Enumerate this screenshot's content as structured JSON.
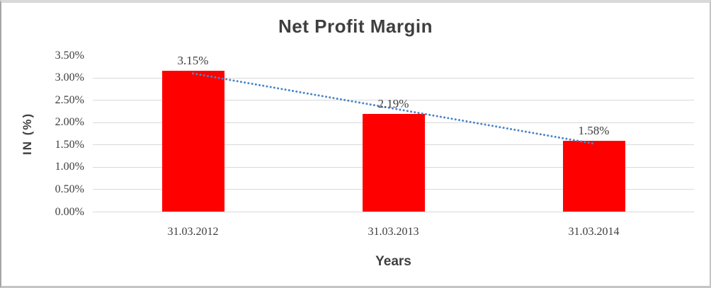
{
  "chart_data": {
    "type": "bar",
    "title": "Net Profit Margin",
    "categories": [
      "31.03.2012",
      "31.03.2013",
      "31.03.2014"
    ],
    "values": [
      3.15,
      2.19,
      1.58
    ],
    "data_labels": [
      "3.15%",
      "2.19%",
      "1.58%"
    ],
    "xlabel": "Years",
    "ylabel": "IN (%)",
    "ylim": [
      0,
      3.5
    ],
    "ytick_step": 0.5,
    "ytick_labels": [
      "0.00%",
      "0.50%",
      "1.00%",
      "1.50%",
      "2.00%",
      "2.50%",
      "3.00%",
      "3.50%"
    ],
    "grid": true,
    "legend": "none",
    "trendline": {
      "type": "linear",
      "style": "dotted"
    },
    "colors": {
      "bar": "#FF0000",
      "trendline": "#4A86C8",
      "gridline": "#D9D9D9",
      "axis_line": "#A6A6A6",
      "text": "#3F3F3F"
    }
  }
}
